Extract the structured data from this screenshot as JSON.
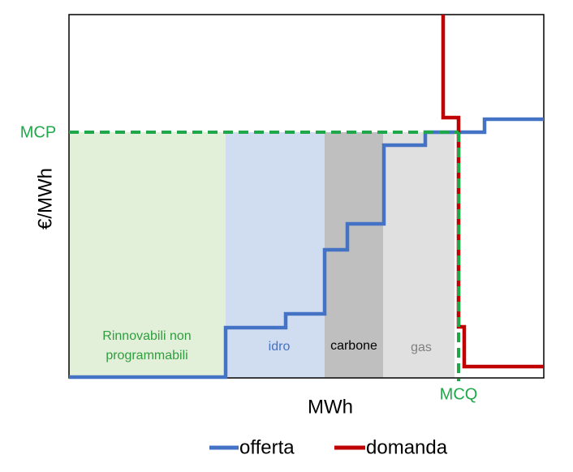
{
  "axes": {
    "y_label": "€/MWh",
    "x_label": "MWh"
  },
  "markers": {
    "price": "MCP",
    "quantity": "MCQ"
  },
  "regions": [
    {
      "label_lines": [
        "Rinnovabili non",
        "programmabili"
      ]
    },
    {
      "label_lines": [
        "idro"
      ]
    },
    {
      "label_lines": [
        "carbone"
      ]
    },
    {
      "label_lines": [
        "gas"
      ]
    }
  ],
  "legend": [
    "offerta",
    "domanda"
  ]
}
